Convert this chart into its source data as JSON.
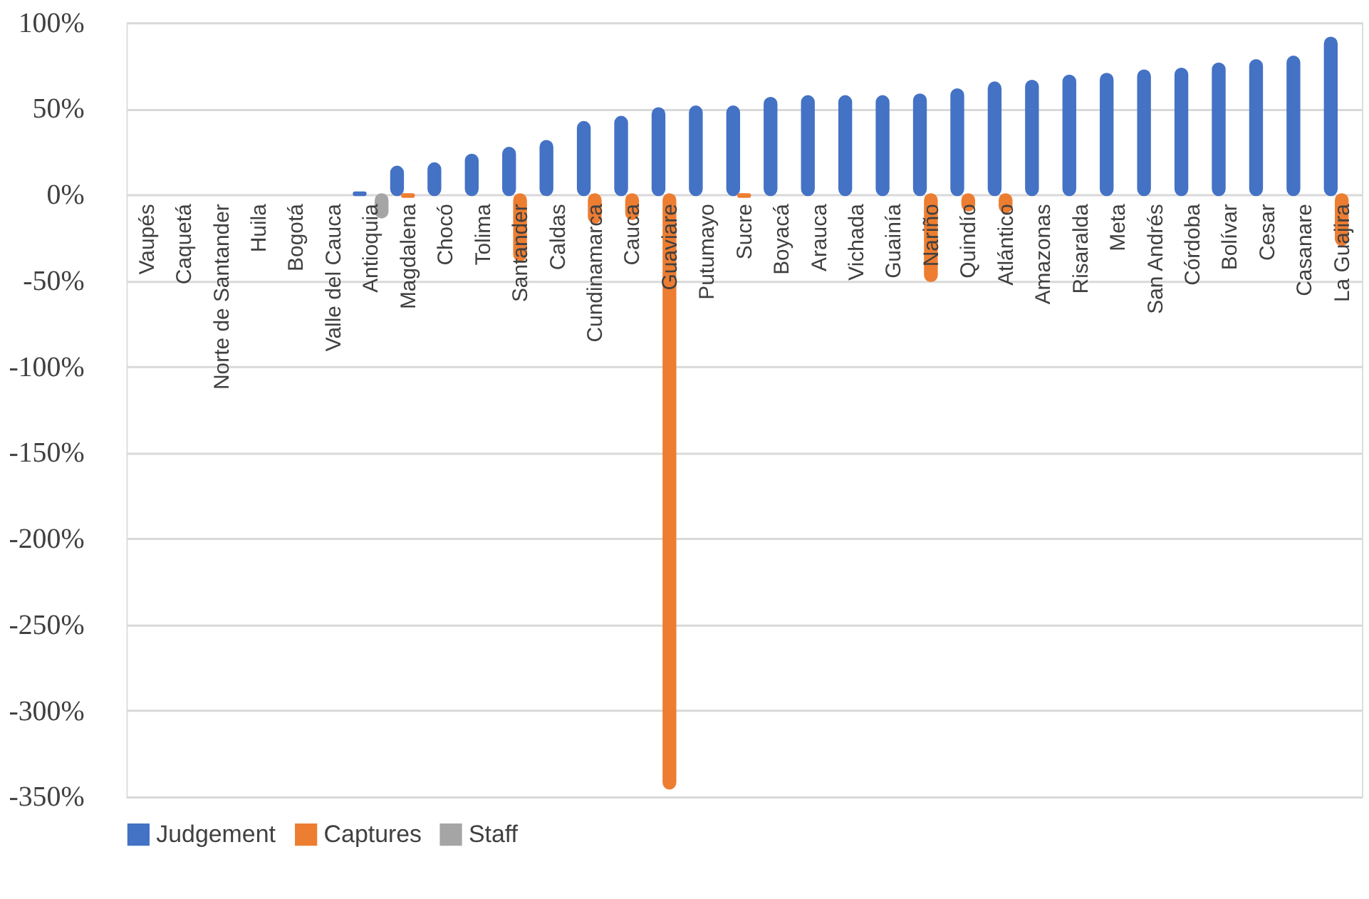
{
  "chart_data": {
    "type": "bar",
    "categories": [
      "Vaupés",
      "Caquetá",
      "Norte de Santander",
      "Huila",
      "Bogotá",
      "Valle del Cauca",
      "Antioquia",
      "Magdalena",
      "Chocó",
      "Tolima",
      "Santander",
      "Caldas",
      "Cundinamarca",
      "Cauca",
      "Guaviare",
      "Putumayo",
      "Sucre",
      "Boyacá",
      "Arauca",
      "Vichada",
      "Guainía",
      "Nariño",
      "Quindío",
      "Atlántico",
      "Amazonas",
      "Risaralda",
      "Meta",
      "San Andrés",
      "Córdoba",
      "Bolívar",
      "Cesar",
      "Casanare",
      "La Guajira"
    ],
    "series": [
      {
        "name": "Judgement",
        "color": "#4472c4",
        "values": [
          null,
          null,
          null,
          null,
          null,
          null,
          1,
          16,
          18,
          23,
          27,
          31,
          42,
          45,
          50,
          51,
          51,
          56,
          57,
          57,
          57,
          58,
          61,
          65,
          66,
          69,
          70,
          72,
          73,
          76,
          78,
          80,
          91
        ]
      },
      {
        "name": "Captures",
        "color": "#ed7d31",
        "values": [
          null,
          null,
          null,
          null,
          null,
          null,
          null,
          -1,
          null,
          null,
          -38,
          null,
          -16,
          -14,
          -345,
          null,
          -1,
          null,
          null,
          null,
          null,
          -50,
          -9,
          -10,
          null,
          null,
          null,
          null,
          null,
          null,
          null,
          null,
          -29
        ]
      },
      {
        "name": "Staff",
        "color": "#a5a5a5",
        "values": [
          null,
          null,
          null,
          null,
          null,
          null,
          -13,
          null,
          null,
          null,
          null,
          null,
          null,
          null,
          null,
          null,
          null,
          null,
          null,
          null,
          null,
          null,
          null,
          null,
          null,
          null,
          null,
          null,
          null,
          null,
          null,
          null,
          null
        ]
      }
    ],
    "ylim": [
      -350,
      100
    ],
    "yticks": [
      {
        "value": -350,
        "label": "-350%"
      },
      {
        "value": -300,
        "label": "-300%"
      },
      {
        "value": -250,
        "label": "-250%"
      },
      {
        "value": -200,
        "label": "-200%"
      },
      {
        "value": -150,
        "label": "-150%"
      },
      {
        "value": -100,
        "label": "-100%"
      },
      {
        "value": -50,
        "label": "-50%"
      },
      {
        "value": 0,
        "label": "0%"
      },
      {
        "value": 50,
        "label": "50%"
      },
      {
        "value": 100,
        "label": "100%"
      }
    ],
    "grid": "y",
    "legend": "bottom"
  }
}
